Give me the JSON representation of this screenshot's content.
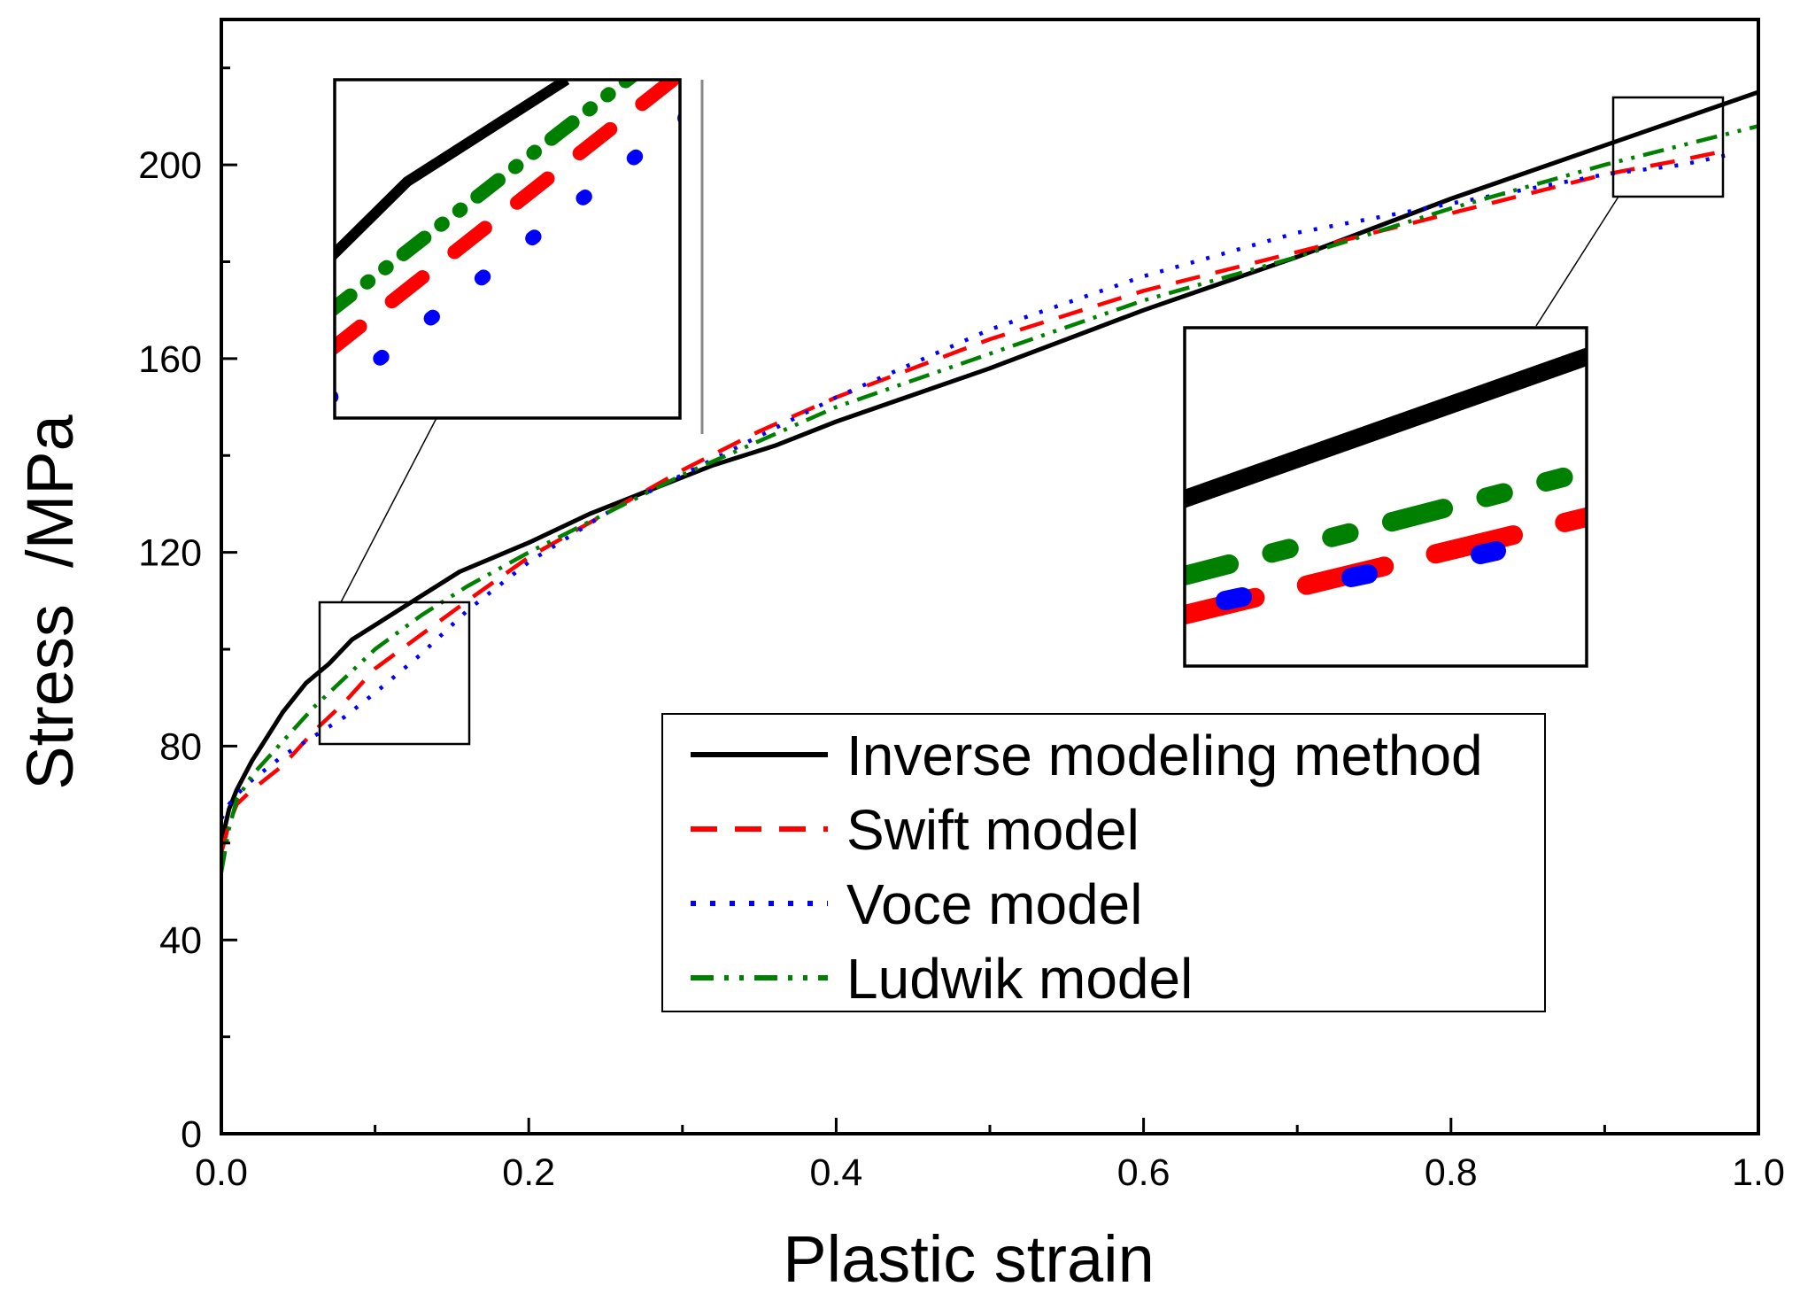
{
  "chart_data": {
    "type": "line",
    "title": "",
    "xlabel": "Plastic strain",
    "ylabel": "Stress  /MPa",
    "xlim": [
      0,
      1.0
    ],
    "ylim": [
      0,
      230
    ],
    "grid": false,
    "legend_position": "bottom-right",
    "x_ticks": [
      "0.0",
      "0.2",
      "0.4",
      "0.6",
      "0.8",
      "1.0"
    ],
    "y_ticks": [
      "0",
      "40",
      "80",
      "120",
      "160",
      "200"
    ],
    "series": [
      {
        "name": "Inverse modeling method",
        "color": "#000000",
        "style": "solid",
        "x": [
          0,
          0.005,
          0.01,
          0.02,
          0.03,
          0.04,
          0.055,
          0.07,
          0.085,
          0.1,
          0.12,
          0.155,
          0.2,
          0.24,
          0.28,
          0.32,
          0.36,
          0.4,
          0.5,
          0.6,
          0.7,
          0.8,
          0.9,
          1.0
        ],
        "values": [
          60,
          67,
          71,
          77,
          82,
          87,
          93,
          97,
          102,
          105,
          109,
          116,
          122,
          128,
          133,
          138,
          142,
          147,
          158,
          170,
          181,
          193,
          204,
          215
        ]
      },
      {
        "name": "Swift model",
        "color": "#ff0000",
        "style": "dashed",
        "x": [
          0,
          0.005,
          0.01,
          0.02,
          0.04,
          0.06,
          0.08,
          0.1,
          0.13,
          0.16,
          0.2,
          0.25,
          0.3,
          0.35,
          0.4,
          0.5,
          0.6,
          0.7,
          0.8,
          0.9,
          0.95,
          0.98
        ],
        "values": [
          58,
          64,
          68,
          71,
          76,
          83,
          89,
          96,
          103,
          110,
          119,
          128,
          137,
          145,
          152,
          164,
          174,
          182,
          190,
          198,
          201,
          203
        ]
      },
      {
        "name": "Voce model",
        "color": "#0000ff",
        "style": "dotted",
        "x": [
          0,
          0.005,
          0.01,
          0.02,
          0.04,
          0.06,
          0.08,
          0.1,
          0.13,
          0.16,
          0.2,
          0.25,
          0.3,
          0.35,
          0.4,
          0.5,
          0.6,
          0.7,
          0.8,
          0.9,
          0.95,
          0.98
        ],
        "values": [
          65,
          68,
          70,
          73,
          78,
          82,
          86,
          91,
          99,
          108,
          118,
          128,
          136,
          144,
          152,
          166,
          177,
          186,
          192,
          198,
          200,
          202
        ]
      },
      {
        "name": "Ludwik model",
        "color": "#008000",
        "style": "dash-dot-dot",
        "x": [
          0,
          0.005,
          0.01,
          0.02,
          0.04,
          0.06,
          0.08,
          0.1,
          0.13,
          0.16,
          0.2,
          0.25,
          0.3,
          0.35,
          0.4,
          0.5,
          0.6,
          0.7,
          0.8,
          0.9,
          0.95,
          1.0
        ],
        "values": [
          54,
          63,
          69,
          74,
          81,
          88,
          94,
          100,
          107,
          113,
          120,
          128,
          136,
          143,
          150,
          161,
          172,
          181,
          191,
          200,
          204,
          208
        ]
      }
    ]
  }
}
